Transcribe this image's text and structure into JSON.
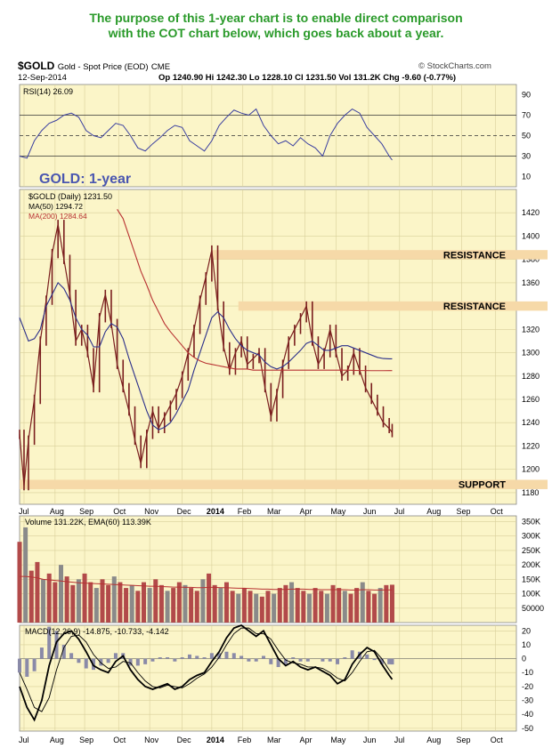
{
  "caption": {
    "line1": "The purpose of this 1-year chart is to enable direct comparison",
    "line2": "with the COT chart below, which goes back about a year."
  },
  "header": {
    "symbol": "$GOLD",
    "name": "Gold - Spot Price (EOD)",
    "exchange": "CME",
    "date": "12-Sep-2014",
    "ohlc": "Op 1240.90  Hi 1242.30  Lo 1228.10  Cl 1231.50  Vol 131.2K  Chg -9.60 (-0.77%)",
    "source": "© StockCharts.com"
  },
  "colors": {
    "bg": "#fbf5c8",
    "price": "#7a1e1e",
    "ma50": "#2b2f8a",
    "ma200": "#b83232",
    "band": "#f6d9a8",
    "title": "#4a56b0",
    "vol_up": "#b24a4a",
    "vol_dn": "#8a8a8a",
    "rsi_line": "#3a3fa0"
  },
  "chart_data": [
    {
      "type": "line",
      "name": "rsi",
      "label": "RSI(14) 26.09",
      "ylim": [
        0,
        100
      ],
      "yticks": [
        90,
        70,
        50,
        30,
        10
      ],
      "reference_lines": [
        70,
        50,
        30
      ],
      "x": [
        0,
        5,
        10,
        15,
        20,
        25,
        30,
        35,
        40,
        45,
        50,
        55,
        60,
        65,
        70,
        75,
        80,
        85,
        90,
        95,
        100,
        105,
        110,
        115,
        120,
        125,
        130,
        135,
        140,
        145,
        150,
        155,
        160,
        165,
        170,
        175,
        180,
        185,
        190,
        195,
        200,
        205,
        210,
        215,
        220,
        225,
        230,
        235,
        240,
        245,
        250,
        252
      ],
      "values": [
        30,
        28,
        45,
        55,
        62,
        65,
        70,
        72,
        68,
        55,
        50,
        48,
        55,
        62,
        60,
        50,
        38,
        35,
        42,
        48,
        55,
        60,
        58,
        45,
        40,
        35,
        45,
        60,
        68,
        75,
        72,
        70,
        76,
        60,
        50,
        42,
        45,
        40,
        48,
        42,
        38,
        30,
        50,
        62,
        70,
        76,
        72,
        58,
        50,
        42,
        30,
        26.09
      ]
    },
    {
      "type": "line",
      "name": "price",
      "label": "$GOLD (Daily) 1231.50",
      "title": "GOLD: 1-year",
      "ylim": [
        1170,
        1440
      ],
      "yticks": [
        1420,
        1400,
        1380,
        1360,
        1340,
        1320,
        1300,
        1280,
        1260,
        1240,
        1220,
        1200,
        1180
      ],
      "x_labels": [
        "Jul",
        "Aug",
        "Sep",
        "Oct",
        "Nov",
        "Dec",
        "2014",
        "Feb",
        "Mar",
        "Apr",
        "May",
        "Jun",
        "Jul",
        "Aug",
        "Sep",
        "Oct"
      ],
      "x_label_positions": [
        3,
        24,
        44,
        67,
        88,
        110,
        130,
        151,
        171,
        193,
        214,
        236,
        257,
        279,
        299,
        322
      ],
      "x": [
        0,
        3,
        6,
        10,
        14,
        18,
        22,
        26,
        30,
        34,
        38,
        42,
        46,
        50,
        54,
        58,
        62,
        66,
        70,
        74,
        78,
        82,
        86,
        90,
        94,
        98,
        102,
        106,
        110,
        114,
        118,
        122,
        126,
        130,
        134,
        138,
        142,
        146,
        150,
        154,
        158,
        162,
        166,
        170,
        174,
        178,
        182,
        186,
        190,
        194,
        198,
        202,
        206,
        210,
        214,
        218,
        222,
        226,
        230,
        234,
        238,
        242,
        246,
        250,
        252
      ],
      "series": [
        {
          "name": "$GOLD (Daily) 1231.50",
          "values": [
            1230,
            1186,
            1225,
            1260,
            1310,
            1345,
            1385,
            1410,
            1380,
            1350,
            1310,
            1320,
            1300,
            1270,
            1330,
            1350,
            1325,
            1290,
            1270,
            1250,
            1225,
            1205,
            1230,
            1250,
            1235,
            1245,
            1255,
            1265,
            1280,
            1300,
            1320,
            1345,
            1365,
            1388,
            1340,
            1305,
            1285,
            1300,
            1310,
            1290,
            1295,
            1300,
            1270,
            1245,
            1265,
            1290,
            1310,
            1320,
            1330,
            1340,
            1310,
            1290,
            1300,
            1320,
            1300,
            1280,
            1285,
            1300,
            1285,
            1270,
            1260,
            1250,
            1240,
            1235,
            1231.5
          ]
        },
        {
          "name": "MA(50) 1294.72",
          "values": [
            1330,
            1320,
            1310,
            1312,
            1320,
            1340,
            1350,
            1360,
            1355,
            1345,
            1330,
            1320,
            1315,
            1305,
            1305,
            1318,
            1325,
            1322,
            1312,
            1295,
            1280,
            1265,
            1250,
            1238,
            1234,
            1236,
            1240,
            1248,
            1258,
            1268,
            1285,
            1300,
            1315,
            1330,
            1335,
            1330,
            1320,
            1312,
            1306,
            1302,
            1300,
            1298,
            1292,
            1288,
            1286,
            1288,
            1292,
            1297,
            1302,
            1308,
            1310,
            1306,
            1302,
            1302,
            1304,
            1306,
            1306,
            1304,
            1302,
            1300,
            1298,
            1296,
            1295,
            1294.72,
            1294.72
          ]
        },
        {
          "name": "MA(200) 1284.64",
          "values": [
            null,
            null,
            null,
            null,
            null,
            null,
            null,
            null,
            null,
            null,
            null,
            null,
            null,
            null,
            null,
            null,
            null,
            1423,
            1415,
            1400,
            1385,
            1370,
            1358,
            1345,
            1335,
            1325,
            1318,
            1312,
            1306,
            1300,
            1296,
            1293,
            1291,
            1290,
            1289,
            1288,
            1287,
            1286,
            1286,
            1286,
            1285,
            1285,
            1285,
            1285,
            1285,
            1285,
            1285,
            1285,
            1285,
            1285,
            1285,
            1285,
            1285,
            1285,
            1285,
            1285,
            1285,
            1284.8,
            1284.7,
            1284.7,
            1284.6,
            1284.6,
            1284.6,
            1284.64,
            1284.64
          ]
        }
      ],
      "bands": [
        {
          "label": "RESISTANCE",
          "low": 1380,
          "high": 1388,
          "x_start": 130
        },
        {
          "label": "RESISTANCE",
          "low": 1336,
          "high": 1344,
          "x_start": 148
        },
        {
          "label": "SUPPORT",
          "low": 1183,
          "high": 1191,
          "x_start": 0
        }
      ]
    },
    {
      "type": "bar",
      "name": "volume",
      "label": "Volume 131.22K, EMA(60) 113.39K",
      "ylim": [
        0,
        370000
      ],
      "yticks": [
        350000,
        300000,
        250000,
        200000,
        150000,
        100000,
        50000
      ],
      "ytick_labels": [
        "350K",
        "300K",
        "250K",
        "200K",
        "150K",
        "100K",
        "50000"
      ],
      "x": [
        0,
        4,
        8,
        12,
        16,
        20,
        24,
        28,
        32,
        36,
        40,
        44,
        48,
        52,
        56,
        60,
        64,
        68,
        72,
        76,
        80,
        84,
        88,
        92,
        96,
        100,
        104,
        108,
        112,
        116,
        120,
        124,
        128,
        132,
        136,
        140,
        144,
        148,
        152,
        156,
        160,
        164,
        168,
        172,
        176,
        180,
        184,
        188,
        192,
        196,
        200,
        204,
        208,
        212,
        216,
        220,
        224,
        228,
        232,
        236,
        240,
        244,
        248,
        252
      ],
      "values": [
        280000,
        330000,
        180000,
        210000,
        150000,
        170000,
        140000,
        200000,
        160000,
        130000,
        150000,
        170000,
        140000,
        120000,
        150000,
        130000,
        160000,
        140000,
        120000,
        130000,
        110000,
        140000,
        120000,
        150000,
        130000,
        110000,
        120000,
        140000,
        130000,
        120000,
        110000,
        150000,
        170000,
        130000,
        120000,
        140000,
        110000,
        100000,
        120000,
        110000,
        100000,
        90000,
        110000,
        100000,
        120000,
        130000,
        140000,
        120000,
        110000,
        100000,
        120000,
        110000,
        100000,
        130000,
        120000,
        110000,
        100000,
        120000,
        140000,
        110000,
        100000,
        120000,
        130000,
        131220
      ],
      "ema": [
        160000,
        160000,
        158000,
        155000,
        150000,
        148000,
        146000,
        144000,
        142000,
        140000,
        138000,
        137000,
        136000,
        135000,
        134000,
        133000,
        132000,
        131000,
        130000,
        129000,
        128000,
        127000,
        126000,
        126000,
        125000,
        124000,
        123000,
        123000,
        122000,
        122000,
        121000,
        121000,
        122000,
        122000,
        121000,
        121000,
        120000,
        119000,
        119000,
        118000,
        117000,
        116000,
        116000,
        115000,
        115000,
        115000,
        116000,
        116000,
        116000,
        115000,
        115000,
        114000,
        114000,
        114000,
        114000,
        114000,
        113000,
        113000,
        114000,
        114000,
        113000,
        113000,
        113500,
        113390
      ]
    },
    {
      "type": "line",
      "name": "macd",
      "label": "MACD(12,26,9) -14.875, -10.733, -4.142",
      "ylim": [
        -52,
        24
      ],
      "yticks": [
        20,
        10,
        0,
        -10,
        -20,
        -30,
        -40,
        -50
      ],
      "x": [
        0,
        5,
        10,
        15,
        20,
        25,
        30,
        35,
        40,
        45,
        50,
        55,
        60,
        65,
        70,
        75,
        80,
        85,
        90,
        95,
        100,
        105,
        110,
        115,
        120,
        125,
        130,
        135,
        140,
        145,
        150,
        155,
        160,
        165,
        170,
        175,
        180,
        185,
        190,
        195,
        200,
        205,
        210,
        215,
        220,
        225,
        230,
        235,
        240,
        245,
        250,
        252
      ],
      "series": [
        {
          "name": "MACD",
          "values": [
            -20,
            -35,
            -44,
            -30,
            -5,
            12,
            18,
            20,
            14,
            5,
            -5,
            -8,
            -10,
            -2,
            2,
            -8,
            -15,
            -20,
            -22,
            -20,
            -18,
            -22,
            -20,
            -15,
            -12,
            -10,
            -2,
            5,
            15,
            22,
            24,
            20,
            16,
            20,
            10,
            0,
            -5,
            -2,
            -6,
            -8,
            -6,
            -9,
            -12,
            -18,
            -15,
            -4,
            3,
            8,
            5,
            -4,
            -12,
            -14.875
          ]
        },
        {
          "name": "Signal",
          "values": [
            -10,
            -22,
            -35,
            -38,
            -28,
            -8,
            8,
            16,
            17,
            12,
            3,
            -3,
            -7,
            -6,
            -2,
            -3,
            -10,
            -16,
            -20,
            -21,
            -19,
            -20,
            -21,
            -18,
            -14,
            -11,
            -6,
            1,
            10,
            18,
            22,
            22,
            18,
            18,
            14,
            6,
            -1,
            -3,
            -4,
            -6,
            -6,
            -7,
            -10,
            -14,
            -16,
            -10,
            -2,
            5,
            6,
            0,
            -8,
            -10.733
          ]
        }
      ],
      "histogram": [
        -10,
        -13,
        -9,
        8,
        23,
        20,
        10,
        4,
        -3,
        -7,
        -8,
        -5,
        -3,
        4,
        4,
        -5,
        -5,
        -4,
        -2,
        1,
        1,
        -2,
        1,
        3,
        2,
        1,
        4,
        4,
        5,
        4,
        2,
        -2,
        -2,
        2,
        -4,
        -6,
        -4,
        1,
        -2,
        -2,
        0,
        -2,
        -2,
        -4,
        1,
        6,
        5,
        3,
        -1,
        -4,
        -4,
        -4.142
      ]
    }
  ]
}
